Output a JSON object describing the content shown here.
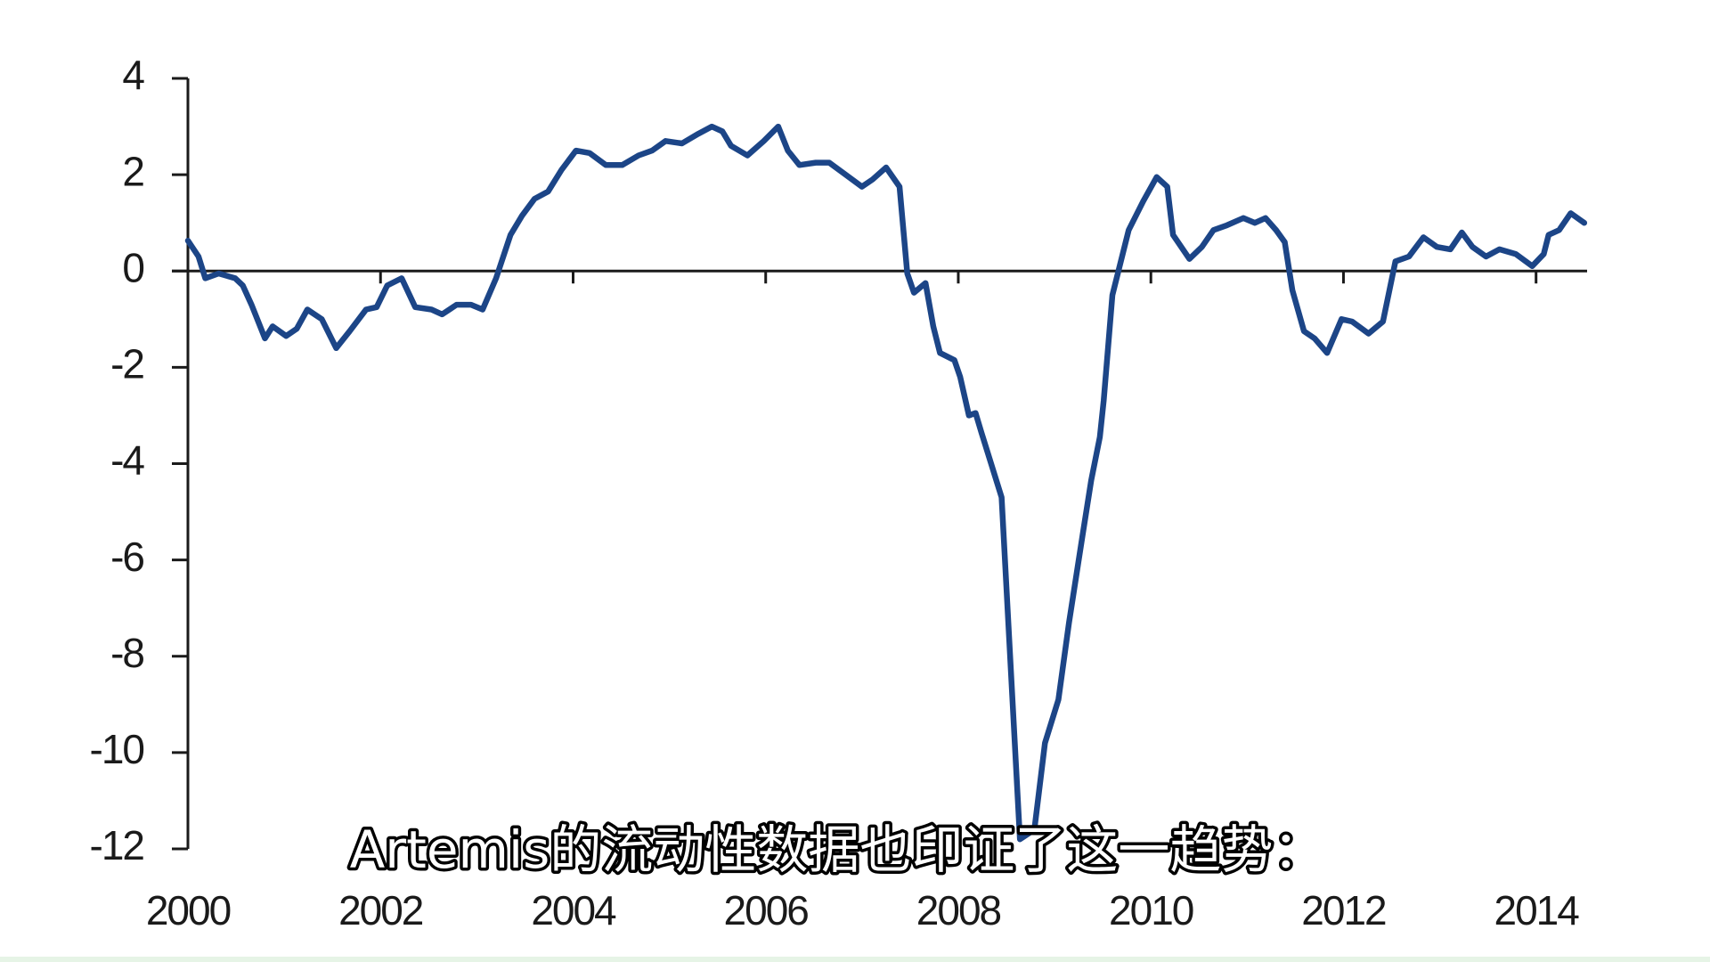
{
  "chart_data": {
    "type": "line",
    "annotation": "Artemis的流动性数据也印证了这一趋势：",
    "x": [
      2000.0,
      2000.11,
      2000.18,
      2000.32,
      2000.49,
      2000.57,
      2000.66,
      2000.8,
      2000.88,
      2001.02,
      2001.13,
      2001.24,
      2001.39,
      2001.54,
      2001.68,
      2001.85,
      2001.96,
      2002.07,
      2002.22,
      2002.36,
      2002.53,
      2002.64,
      2002.79,
      2002.94,
      2003.06,
      2003.2,
      2003.35,
      2003.47,
      2003.6,
      2003.74,
      2003.88,
      2004.03,
      2004.17,
      2004.34,
      2004.51,
      2004.68,
      2004.82,
      2004.96,
      2005.13,
      2005.3,
      2005.44,
      2005.55,
      2005.64,
      2005.81,
      2005.98,
      2006.13,
      2006.23,
      2006.35,
      2006.52,
      2006.66,
      2006.83,
      2007.0,
      2007.11,
      2007.25,
      2007.39,
      2007.47,
      2007.54,
      2007.66,
      2007.74,
      2007.81,
      2007.96,
      2008.02,
      2008.11,
      2008.18,
      2008.24,
      2008.45,
      2008.64,
      2008.79,
      2008.9,
      2009.04,
      2009.15,
      2009.29,
      2009.38,
      2009.47,
      2009.51,
      2009.6,
      2009.77,
      2009.92,
      2010.06,
      2010.17,
      2010.23,
      2010.4,
      2010.53,
      2010.65,
      2010.79,
      2010.96,
      2011.08,
      2011.19,
      2011.3,
      2011.39,
      2011.47,
      2011.59,
      2011.7,
      2011.83,
      2011.98,
      2012.09,
      2012.26,
      2012.41,
      2012.54,
      2012.68,
      2012.83,
      2012.97,
      2013.11,
      2013.23,
      2013.34,
      2013.48,
      2013.62,
      2013.79,
      2013.96,
      2014.08,
      2014.13,
      2014.24,
      2014.36,
      2014.5
    ],
    "series": [
      {
        "color": "#1c4587",
        "values": [
          0.63,
          0.3,
          -0.15,
          -0.05,
          -0.15,
          -0.3,
          -0.7,
          -1.4,
          -1.15,
          -1.35,
          -1.2,
          -0.8,
          -1.0,
          -1.6,
          -1.25,
          -0.8,
          -0.75,
          -0.3,
          -0.15,
          -0.75,
          -0.8,
          -0.9,
          -0.7,
          -0.7,
          -0.8,
          -0.15,
          0.75,
          1.15,
          1.5,
          1.65,
          2.1,
          2.5,
          2.45,
          2.2,
          2.2,
          2.4,
          2.5,
          2.7,
          2.65,
          2.85,
          3.0,
          2.9,
          2.6,
          2.4,
          2.7,
          3.0,
          2.5,
          2.2,
          2.25,
          2.25,
          2.0,
          1.75,
          1.9,
          2.15,
          1.75,
          -0.05,
          -0.45,
          -0.25,
          -1.15,
          -1.7,
          -1.85,
          -2.2,
          -3.0,
          -2.95,
          -3.35,
          -4.7,
          -11.8,
          -11.6,
          -9.8,
          -8.9,
          -7.3,
          -5.5,
          -4.35,
          -3.45,
          -2.7,
          -0.5,
          0.85,
          1.45,
          1.95,
          1.75,
          0.75,
          0.25,
          0.5,
          0.85,
          0.95,
          1.1,
          1.0,
          1.1,
          0.85,
          0.6,
          -0.4,
          -1.25,
          -1.4,
          -1.7,
          -1.0,
          -1.05,
          -1.3,
          -1.05,
          0.2,
          0.3,
          0.7,
          0.5,
          0.45,
          0.8,
          0.5,
          0.3,
          0.45,
          0.35,
          0.1,
          0.35,
          0.75,
          0.85,
          1.2,
          1.0
        ]
      }
    ],
    "xlim": [
      2000,
      2014.53
    ],
    "xticks": [
      2000,
      2002,
      2004,
      2006,
      2008,
      2010,
      2012,
      2014
    ],
    "ylim": [
      -12,
      4
    ],
    "yticks": [
      -12,
      -10,
      -8,
      -6,
      -4,
      -2,
      0,
      2,
      4
    ],
    "grid": false
  }
}
